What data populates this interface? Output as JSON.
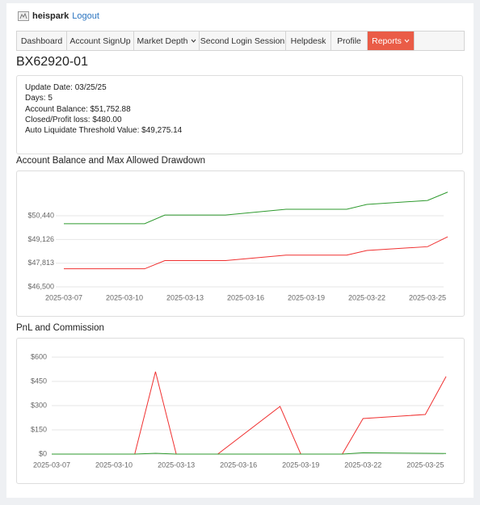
{
  "header": {
    "user": "heispark",
    "logout": "Logout"
  },
  "nav": [
    "Dashboard",
    "Account SignUp",
    "Market Depth",
    "Second Login Session",
    "Helpdesk",
    "Profile",
    "Reports"
  ],
  "account_id": "BX62920-01",
  "info": [
    "Update Date: 03/25/25",
    "Days: 5",
    "Account Balance: $51,752.88",
    "Closed/Profit loss: $480.00",
    "Auto Liquidate Threshold Value: $49,275.14"
  ],
  "chart_data": [
    {
      "type": "line",
      "title": "Account Balance and Max Allowed Drawdown",
      "x": [
        "2025-03-07",
        "2025-03-11",
        "2025-03-12",
        "2025-03-15",
        "2025-03-18",
        "2025-03-21",
        "2025-03-22",
        "2025-03-25",
        "2025-03-26"
      ],
      "series": [
        {
          "color": "#2e9a2e",
          "values": [
            50000,
            50000,
            50480,
            50480,
            50800,
            50800,
            51070,
            51290,
            51753
          ]
        },
        {
          "color": "#f03030",
          "values": [
            47500,
            47500,
            47956,
            47956,
            48260,
            48260,
            48517,
            48726,
            49275
          ]
        }
      ],
      "xlim": [
        "2025-03-07",
        "2025-03-26"
      ],
      "xticks": [
        "2025-03-07",
        "2025-03-10",
        "2025-03-13",
        "2025-03-16",
        "2025-03-19",
        "2025-03-22",
        "2025-03-25"
      ],
      "ylim": [
        46500,
        52100
      ],
      "yticks": [
        {
          "value": 46500,
          "label": "$46,500"
        },
        {
          "value": 47813,
          "label": "$47,813"
        },
        {
          "value": 49126,
          "label": "$49,126"
        },
        {
          "value": 50440,
          "label": "$50,440"
        }
      ],
      "grid": true
    },
    {
      "type": "line",
      "title": "PnL and Commission",
      "x": [
        "2025-03-07",
        "2025-03-11",
        "2025-03-12",
        "2025-03-13",
        "2025-03-15",
        "2025-03-18",
        "2025-03-19",
        "2025-03-21",
        "2025-03-22",
        "2025-03-25",
        "2025-03-26"
      ],
      "series": [
        {
          "color": "#f03030",
          "values": [
            0,
            0,
            510,
            0,
            0,
            295,
            0,
            0,
            220,
            245,
            480
          ]
        },
        {
          "color": "#2e9a2e",
          "values": [
            0,
            0,
            5,
            0,
            0,
            0,
            0,
            0,
            8,
            5,
            4
          ]
        }
      ],
      "xlim": [
        "2025-03-07",
        "2025-03-26"
      ],
      "xticks": [
        "2025-03-07",
        "2025-03-10",
        "2025-03-13",
        "2025-03-16",
        "2025-03-19",
        "2025-03-22",
        "2025-03-25"
      ],
      "ylim": [
        0,
        650
      ],
      "yticks": [
        {
          "value": 0,
          "label": "$0"
        },
        {
          "value": 150,
          "label": "$150"
        },
        {
          "value": 300,
          "label": "$300"
        },
        {
          "value": 450,
          "label": "$450"
        },
        {
          "value": 600,
          "label": "$600"
        }
      ],
      "grid": true
    }
  ]
}
